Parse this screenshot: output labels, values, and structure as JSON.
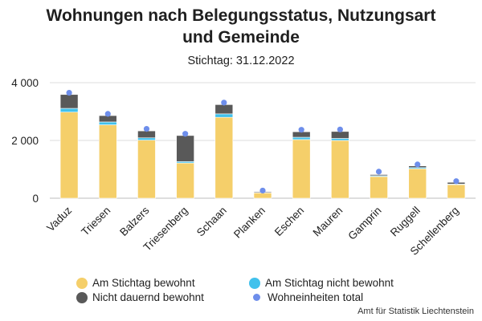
{
  "title_line1": "Wohnungen nach Belegungsstatus, Nutzungsart",
  "title_line2": "und Gemeinde",
  "subtitle": "Stichtag: 31.12.2022",
  "credits": "Amt für Statistik Liechtenstein",
  "colors": {
    "bewohnt": "#F5CF6A",
    "nicht_bewohnt": "#41C1EC",
    "nicht_dauernd": "#595959",
    "total": "#6E8EEB",
    "grid": "#dcdcdc",
    "axis": "#bdbdbd"
  },
  "chart_data": {
    "type": "bar",
    "stacked": true,
    "categories": [
      "Vaduz",
      "Triesen",
      "Balzers",
      "Triesenberg",
      "Schaan",
      "Planken",
      "Eschen",
      "Mauren",
      "Gamprin",
      "Ruggell",
      "Schellenberg"
    ],
    "series": [
      {
        "name": "Am Stichtag bewohnt",
        "values": [
          2980,
          2540,
          2010,
          1220,
          2800,
          185,
          2030,
          2000,
          750,
          1020,
          470
        ]
      },
      {
        "name": "Am Stichtag nicht bewohnt",
        "values": [
          130,
          100,
          80,
          50,
          120,
          10,
          80,
          70,
          30,
          40,
          20
        ]
      },
      {
        "name": "Nicht dauernd bewohnt",
        "values": [
          480,
          220,
          240,
          900,
          320,
          30,
          190,
          240,
          40,
          60,
          60
        ]
      }
    ],
    "markers": {
      "name": "Wohneinheiten total",
      "values": [
        3650,
        2920,
        2400,
        2230,
        3310,
        265,
        2370,
        2380,
        920,
        1170,
        590
      ]
    },
    "yticks": [
      "0",
      "2 000",
      "4 000"
    ],
    "ylim": [
      0,
      4000
    ],
    "grid": true,
    "legend_position": "bottom"
  }
}
